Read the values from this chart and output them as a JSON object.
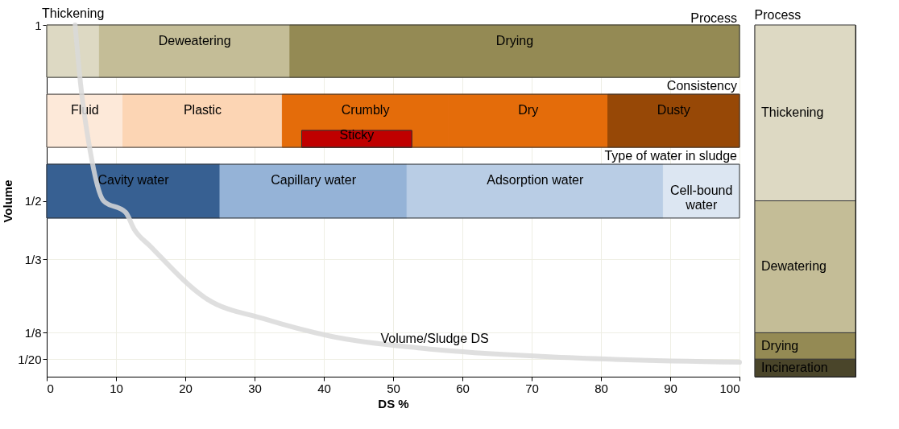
{
  "chart_data": [
    {
      "type": "line",
      "xlabel": "DS %",
      "ylabel": "Volume",
      "xlim": [
        0,
        100
      ],
      "xticks": [
        0,
        10,
        20,
        30,
        40,
        50,
        60,
        70,
        80,
        90,
        100
      ],
      "ylim": [
        0,
        1
      ],
      "yticks": [
        {
          "value": 1,
          "label": "1"
        },
        {
          "value": 0.5,
          "label": "1/2"
        },
        {
          "value": 0.333,
          "label": "1/3"
        },
        {
          "value": 0.125,
          "label": "1/8"
        },
        {
          "value": 0.05,
          "label": "1/20"
        }
      ],
      "grid": true,
      "marker": "none",
      "line_style": "solid",
      "series": [
        {
          "color": "#d9d9d9",
          "x": [
            4.1,
            4.9,
            6.2,
            8.2,
            11.4,
            12.6,
            15,
            23.2,
            31.3,
            41,
            55.7,
            72,
            100
          ],
          "values": [
            1.0,
            0.83,
            0.65,
            0.5,
            0.467,
            0.42,
            0.37,
            0.22,
            0.165,
            0.115,
            0.078,
            0.057,
            0.041
          ]
        }
      ],
      "bands": [
        {
          "axis": "x",
          "from": 0,
          "to": 7.6,
          "label": "Thickening",
          "color": "#ddd9c3"
        },
        {
          "axis": "x",
          "from": 7.6,
          "to": 35.1,
          "label": "Deweatering",
          "color": "#c4bd97"
        },
        {
          "axis": "x",
          "from": 35.1,
          "to": 100,
          "label": "Drying",
          "color": "#948a54"
        },
        {
          "axis": "x",
          "from": 0,
          "to": 11,
          "label": "Fluid",
          "color": "#fde9d9"
        },
        {
          "axis": "x",
          "from": 11,
          "to": 34,
          "label": "Plastic",
          "color": "#fcd5b4"
        },
        {
          "axis": "x",
          "from": 34,
          "to": 58,
          "label": "Crumbly",
          "color": "#e46c0a"
        },
        {
          "axis": "x",
          "from": 58,
          "to": 81,
          "label": "Dry",
          "color": "#e46c0a"
        },
        {
          "axis": "x",
          "from": 81,
          "to": 100,
          "label": "Dusty",
          "color": "#974806"
        },
        {
          "axis": "x",
          "from": 36.8,
          "to": 52.7,
          "label": "Sticky",
          "color": "#c00000"
        },
        {
          "axis": "x",
          "from": 0,
          "to": 25,
          "label": "Cavity water",
          "color": "#376092"
        },
        {
          "axis": "x",
          "from": 25,
          "to": 52,
          "label": "Capillary water",
          "color": "#95b3d7"
        },
        {
          "axis": "x",
          "from": 52,
          "to": 89,
          "label": "Adsorption water",
          "color": "#b9cde5"
        },
        {
          "axis": "x",
          "from": 89,
          "to": 100,
          "label": "Cell-bound water",
          "color": "#dce6f2"
        }
      ],
      "annotations": [
        "Process",
        "Consistency",
        "Type of water in sludge",
        {
          "text": "Volume/Sludge DS",
          "x": 56,
          "y": 0.09
        }
      ]
    },
    {
      "type": "bar",
      "stacked": true,
      "title": "Process",
      "categories": [
        null
      ],
      "ylim": [
        0,
        1
      ],
      "tick_labels": false,
      "series": [
        {
          "name": "Incineration",
          "color": "#4a452a",
          "values": [
            0.05
          ]
        },
        {
          "name": "Drying",
          "color": "#948a54",
          "values": [
            0.075
          ]
        },
        {
          "name": "Dewatering",
          "color": "#c4bd97",
          "values": [
            0.375
          ]
        },
        {
          "name": "Thickening",
          "color": "#ddd9c3",
          "values": [
            0.5
          ]
        }
      ]
    }
  ]
}
